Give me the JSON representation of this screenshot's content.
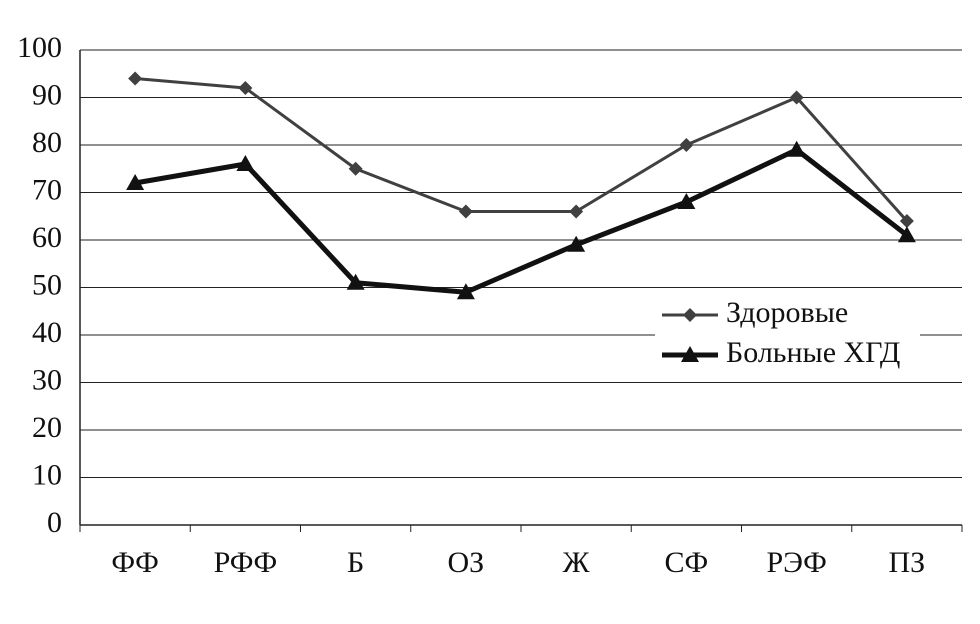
{
  "chart_data": {
    "type": "line",
    "categories": [
      "ФФ",
      "РФФ",
      "Б",
      "ОЗ",
      "Ж",
      "СФ",
      "РЭФ",
      "ПЗ"
    ],
    "series": [
      {
        "name": "Здоровые",
        "color": "#404040",
        "marker": "diamond",
        "values": [
          94,
          92,
          75,
          66,
          66,
          80,
          90,
          64
        ]
      },
      {
        "name": "Больные ХГД",
        "color": "#111111",
        "marker": "triangle",
        "values": [
          72,
          76,
          51,
          49,
          59,
          68,
          79,
          61
        ]
      }
    ],
    "ylim": [
      0,
      100
    ],
    "yticks": [
      0,
      10,
      20,
      30,
      40,
      50,
      60,
      70,
      80,
      90,
      100
    ],
    "grid": true
  }
}
